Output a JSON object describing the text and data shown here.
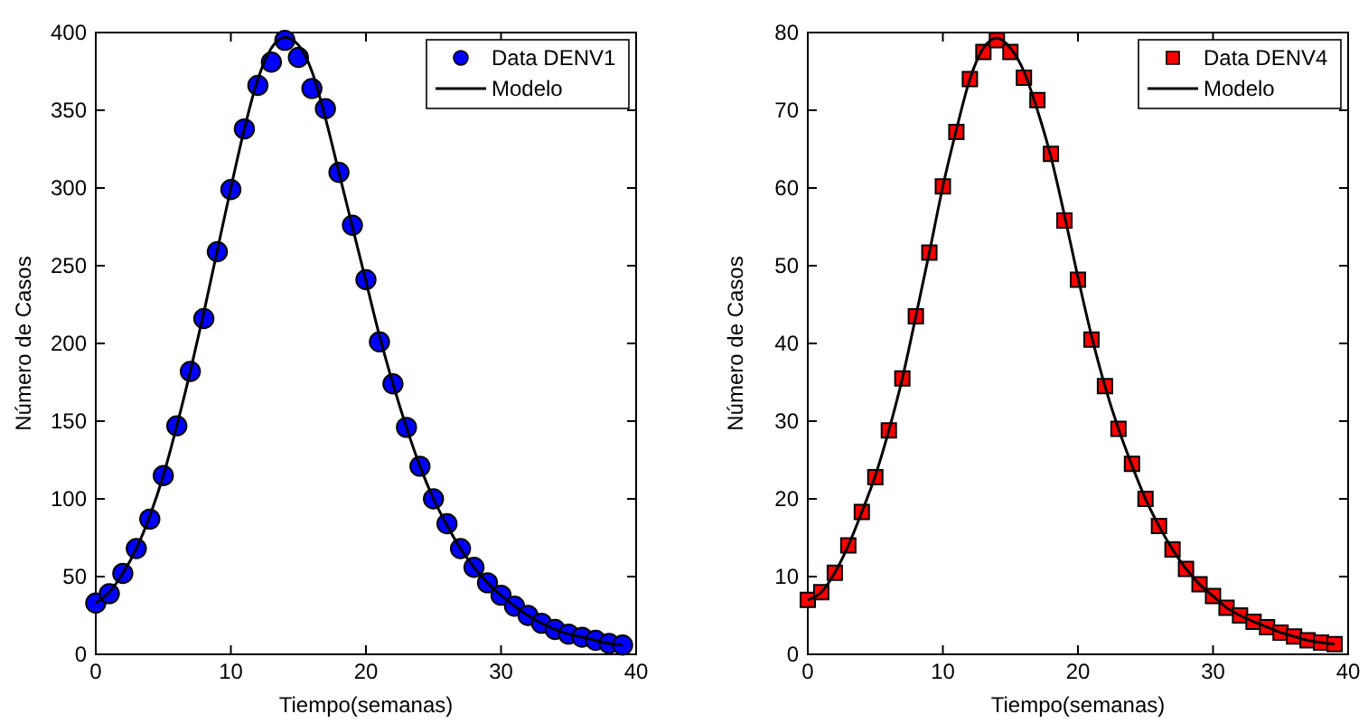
{
  "chart_data": [
    {
      "type": "scatter",
      "xlabel": "Tiempo(semanas)",
      "ylabel": "Número de Casos",
      "xlim": [
        0,
        40
      ],
      "ylim": [
        0,
        400
      ],
      "xticks": [
        0,
        10,
        20,
        30,
        40
      ],
      "yticks": [
        0,
        50,
        100,
        150,
        200,
        250,
        300,
        350,
        400
      ],
      "legend": "top right",
      "grid": false,
      "x": [
        0,
        1,
        2,
        3,
        4,
        5,
        6,
        7,
        8,
        9,
        10,
        11,
        12,
        13,
        14,
        15,
        16,
        17,
        18,
        19,
        20,
        21,
        22,
        23,
        24,
        25,
        26,
        27,
        28,
        29,
        30,
        31,
        32,
        33,
        34,
        35,
        36,
        37,
        38,
        39
      ],
      "series": [
        {
          "name": "Data DENV1",
          "marker": "circle",
          "color": "#0000ff",
          "values": [
            33,
            39,
            52,
            68,
            87,
            115,
            147,
            182,
            216,
            259,
            299,
            338,
            366,
            381,
            395,
            384,
            364,
            351,
            310,
            276,
            241,
            201,
            174,
            146,
            121,
            100,
            84,
            68,
            56,
            46,
            38,
            31,
            25,
            20,
            16,
            13,
            11,
            9,
            7,
            6
          ]
        },
        {
          "name": "Modelo",
          "type": "line",
          "marker": "none",
          "line_style": "solid",
          "color": "#000000",
          "values": [
            33,
            40,
            52,
            68,
            89,
            115,
            147,
            182,
            220,
            260,
            300,
            338,
            370,
            390,
            397,
            392,
            375,
            345,
            310,
            275,
            240,
            205,
            174,
            146,
            121,
            100,
            83,
            68,
            56,
            46,
            38,
            31,
            25,
            20,
            16,
            13,
            11,
            9,
            7,
            6
          ]
        }
      ]
    },
    {
      "type": "scatter",
      "xlabel": "Tiempo(semanas)",
      "ylabel": "Número de Casos",
      "xlim": [
        0,
        40
      ],
      "ylim": [
        0,
        80
      ],
      "xticks": [
        0,
        10,
        20,
        30,
        40
      ],
      "yticks": [
        0,
        10,
        20,
        30,
        40,
        50,
        60,
        70,
        80
      ],
      "legend": "top right",
      "grid": false,
      "x": [
        0,
        1,
        2,
        3,
        4,
        5,
        6,
        7,
        8,
        9,
        10,
        11,
        12,
        13,
        14,
        15,
        16,
        17,
        18,
        19,
        20,
        21,
        22,
        23,
        24,
        25,
        26,
        27,
        28,
        29,
        30,
        31,
        32,
        33,
        34,
        35,
        36,
        37,
        38,
        39
      ],
      "series": [
        {
          "name": "Data DENV4",
          "marker": "square",
          "color": "#ff0000",
          "values": [
            7,
            8,
            10.5,
            14,
            18.3,
            22.8,
            28.8,
            35.5,
            43.5,
            51.7,
            60.2,
            67.2,
            74,
            77.5,
            79,
            77.5,
            74.2,
            71.3,
            64.4,
            55.8,
            48.2,
            40.5,
            34.5,
            29,
            24.5,
            20,
            16.5,
            13.5,
            11,
            9,
            7.5,
            6,
            5,
            4.2,
            3.5,
            2.8,
            2.3,
            1.8,
            1.5,
            1.3
          ]
        },
        {
          "name": "Modelo",
          "type": "line",
          "marker": "none",
          "line_style": "solid",
          "color": "#000000",
          "values": [
            7,
            8,
            10.5,
            14,
            18.3,
            23,
            28.8,
            35.5,
            43.5,
            51.7,
            60.2,
            67.5,
            74,
            78,
            79.3,
            78,
            75,
            70,
            64,
            56.5,
            48.5,
            41,
            34.5,
            29,
            24.3,
            20,
            16.5,
            13.5,
            11,
            9,
            7.5,
            6,
            5,
            4.2,
            3.5,
            2.8,
            2.3,
            1.8,
            1.5,
            1.3
          ]
        }
      ]
    }
  ]
}
